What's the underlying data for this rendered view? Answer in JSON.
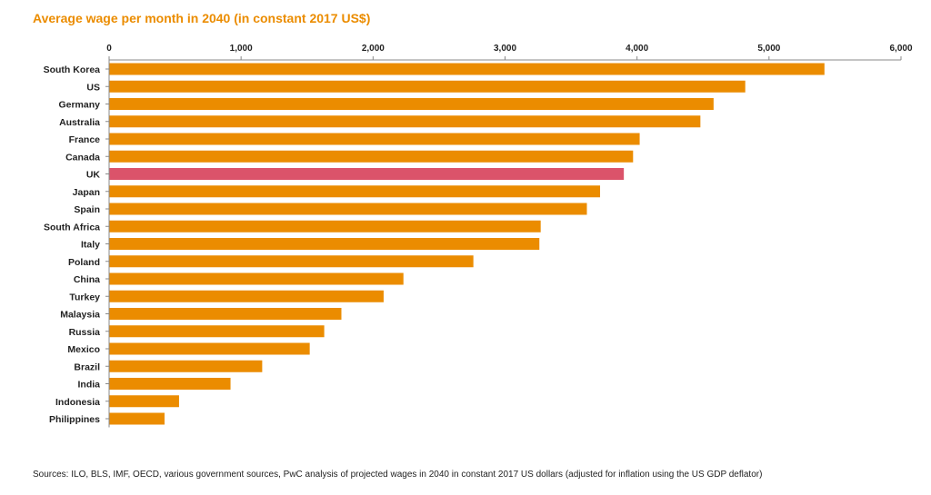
{
  "chart_data": {
    "type": "bar",
    "orientation": "horizontal",
    "title": "Average wage per month in 2040 (in constant 2017 US$)",
    "xlabel": "",
    "ylabel": "",
    "xlim": [
      0,
      6000
    ],
    "ticks": [
      0,
      1000,
      2000,
      3000,
      4000,
      5000,
      6000
    ],
    "tick_labels": [
      "0",
      "1,000",
      "2,000",
      "3,000",
      "4,000",
      "5,000",
      "6,000"
    ],
    "tick_position": "top",
    "grid": false,
    "categories": [
      "South Korea",
      "US",
      "Germany",
      "Australia",
      "France",
      "Canada",
      "UK",
      "Japan",
      "Spain",
      "South Africa",
      "Italy",
      "Poland",
      "China",
      "Turkey",
      "Malaysia",
      "Russia",
      "Mexico",
      "Brazil",
      "India",
      "Indonesia",
      "Philippines"
    ],
    "values": [
      5420,
      4820,
      4580,
      4480,
      4020,
      3970,
      3900,
      3720,
      3620,
      3270,
      3260,
      2760,
      2230,
      2080,
      1760,
      1630,
      1520,
      1160,
      920,
      530,
      420
    ],
    "highlight": "UK",
    "colors": {
      "bar": "#eb8c00",
      "highlight": "#db536a",
      "axis": "#888888",
      "title": "#eb8c00",
      "text": "#222222"
    }
  },
  "source_note": "Sources: ILO, BLS, IMF, OECD, various government sources, PwC analysis of projected wages in 2040 in constant 2017 US dollars (adjusted for inflation using the US GDP deflator)"
}
